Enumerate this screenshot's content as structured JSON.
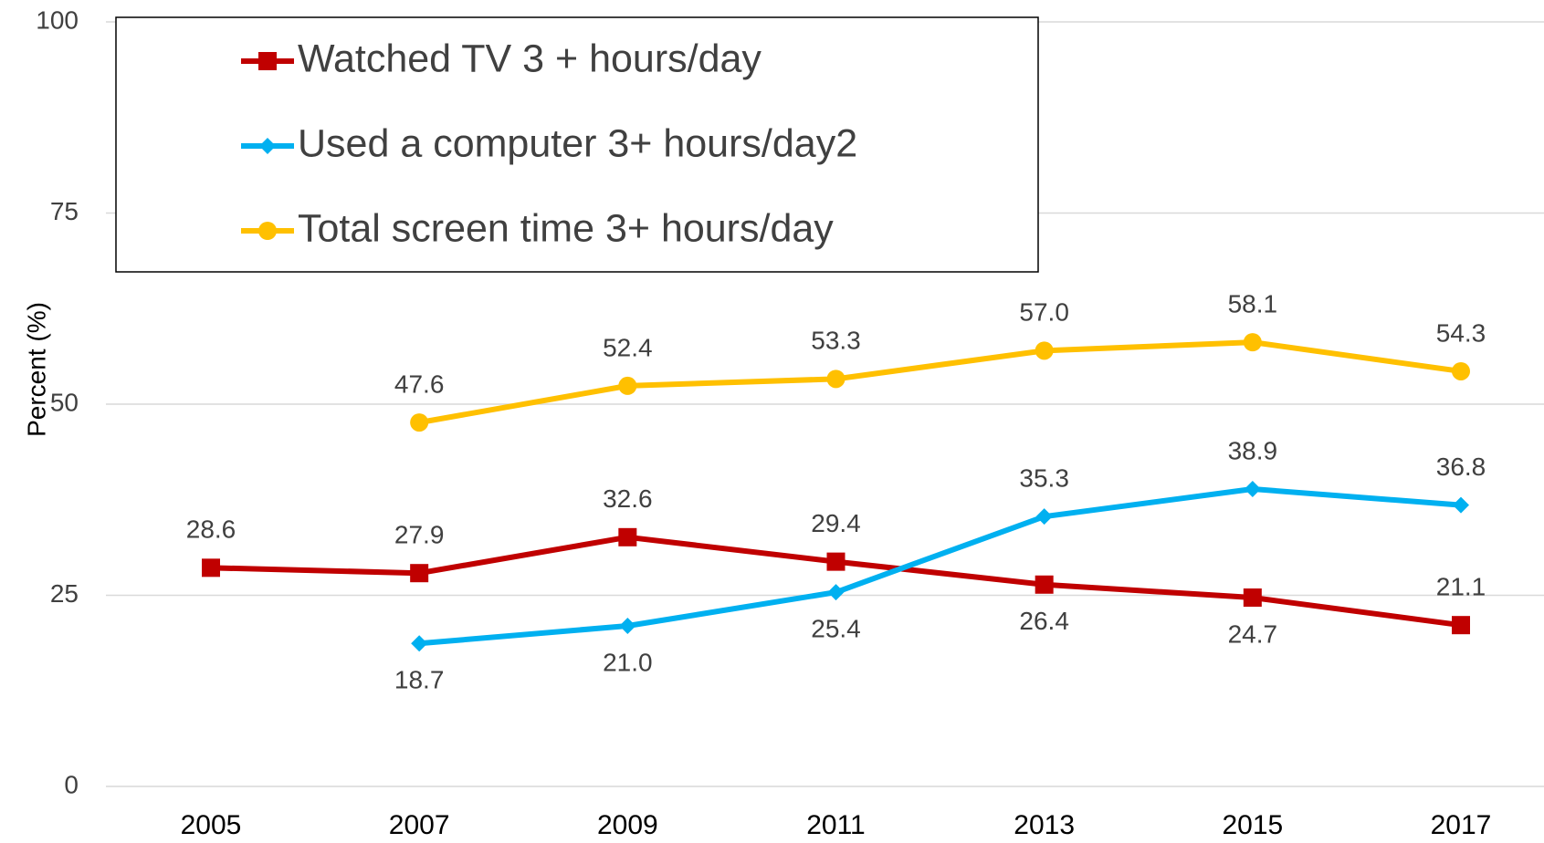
{
  "chart_data": {
    "type": "line",
    "ylabel": "Percent (%)",
    "categories": [
      "2005",
      "2007",
      "2009",
      "2011",
      "2013",
      "2015",
      "2017"
    ],
    "series": [
      {
        "name": "Watched TV 3 + hours/day",
        "color": "#c00000",
        "marker": "square",
        "values": [
          28.6,
          27.9,
          32.6,
          29.4,
          26.4,
          24.7,
          21.1
        ],
        "value_labels": [
          "28.6",
          "27.9",
          "32.6",
          "29.4",
          "26.4",
          "24.7",
          "21.1"
        ]
      },
      {
        "name": "Used a computer 3+ hours/day2",
        "color": "#00b0f0",
        "marker": "diamond",
        "values": [
          null,
          18.7,
          21.0,
          25.4,
          35.3,
          38.9,
          36.8
        ],
        "value_labels": [
          null,
          "18.7",
          "21.0",
          "25.4",
          "35.3",
          "38.9",
          "36.8"
        ]
      },
      {
        "name": "Total screen time 3+ hours/day",
        "color": "#ffc000",
        "marker": "circle",
        "values": [
          null,
          47.6,
          52.4,
          53.3,
          57.0,
          58.1,
          54.3
        ],
        "value_labels": [
          null,
          "47.6",
          "52.4",
          "53.3",
          "57.0",
          "58.1",
          "54.3"
        ]
      }
    ],
    "ylim": [
      0,
      100
    ],
    "yticks": [
      0,
      25,
      50,
      75,
      100
    ],
    "grid": true,
    "legend": "upper left"
  }
}
